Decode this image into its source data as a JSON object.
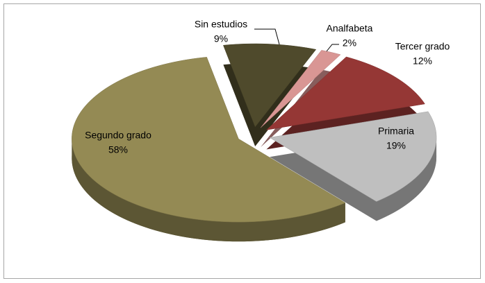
{
  "chart_data": {
    "type": "pie",
    "categories": [
      "Sin estudios",
      "Analfabeta",
      "Tercer grado",
      "Primaria",
      "Segundo grado"
    ],
    "values": [
      9,
      2,
      12,
      19,
      58
    ],
    "value_labels": [
      "9%",
      "2%",
      "12%",
      "19%",
      "58%"
    ],
    "colors": [
      "#4f4a2c",
      "#d99694",
      "#953735",
      "#bfbfbf",
      "#948a54"
    ]
  }
}
